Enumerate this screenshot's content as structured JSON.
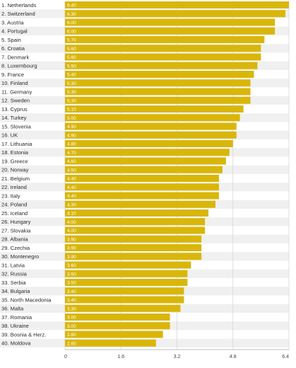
{
  "chart_data": {
    "type": "bar",
    "orientation": "horizontal",
    "categories": [
      "1. Netherlands",
      "2. Switzerland",
      "3. Austria",
      "4. Portugal",
      "5. Spain",
      "6. Croatia",
      "7. Denmark",
      "8. Luxembourg",
      "9. France",
      "10. Finland",
      "11. Germany",
      "12. Sweden",
      "13. Cyprus",
      "14. Turkey",
      "15. Slovenia",
      "16. UK",
      "17. Lithuania",
      "18. Estonia",
      "19. Greece",
      "20. Norway",
      "21. Belgium",
      "22. Ireland",
      "23. Italy",
      "24. Poland",
      "25. Iceland",
      "26. Hungary",
      "27. Slovakia",
      "28. Albania",
      "29. Czechia",
      "30. Montenegro",
      "31. Latvia",
      "32. Russia",
      "33. Serbia",
      "34. Bulgaria",
      "35. North Macedonia",
      "36. Malta",
      "37. Romania",
      "38. Ukraine",
      "39. Bosnia & Herz.",
      "40. Moldova"
    ],
    "values": [
      6.4,
      6.3,
      6.0,
      6.0,
      5.7,
      5.6,
      5.6,
      5.5,
      5.4,
      5.3,
      5.3,
      5.3,
      5.1,
      5.0,
      4.9,
      4.9,
      4.8,
      4.7,
      4.6,
      4.5,
      4.4,
      4.4,
      4.4,
      4.3,
      4.1,
      4.0,
      4.0,
      3.9,
      3.9,
      3.9,
      3.6,
      3.5,
      3.5,
      3.4,
      3.4,
      3.3,
      3.0,
      3.0,
      2.8,
      2.6
    ],
    "value_labels": [
      "6.40",
      "6.30",
      "6.00",
      "6.00",
      "5.70",
      "5.60",
      "5.60",
      "5.50",
      "5.40",
      "5.30",
      "5.30",
      "5.30",
      "5.10",
      "5.00",
      "4.90",
      "4.90",
      "4.80",
      "4.70",
      "4.60",
      "4.50",
      "4.40",
      "4.40",
      "4.40",
      "4.30",
      "4.10",
      "4.00",
      "4.00",
      "3.90",
      "3.90",
      "3.90",
      "3.60",
      "3.50",
      "3.50",
      "3.40",
      "3.40",
      "3.30",
      "3.00",
      "3.00",
      "2.80",
      "2.60"
    ],
    "xlim": [
      0,
      6.4
    ],
    "x_ticks": [
      0,
      1.6,
      3.2,
      4.8,
      6.4
    ],
    "x_tick_labels": [
      "0",
      "1.6",
      "3.2",
      "4.8",
      "6.4"
    ],
    "title": "",
    "xlabel": "",
    "ylabel": "",
    "grid": true,
    "legend": "none",
    "colors": {
      "bar": "#d9b60a",
      "row_background": "#f0f0f0",
      "value_text": "#ffffff",
      "label_text": "#2b2b2b"
    }
  }
}
